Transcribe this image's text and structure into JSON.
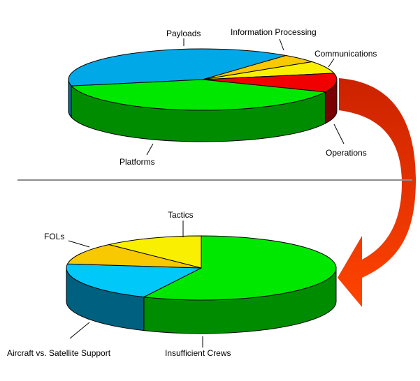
{
  "chart_data": [
    {
      "type": "pie",
      "style": "3d",
      "slices": [
        {
          "label": "Payloads",
          "value": 39,
          "color": "#00a8e8",
          "side_color": "#006f96"
        },
        {
          "label": "Information Processing",
          "value": 4.5,
          "color": "#f8c800",
          "side_color": "#a08000"
        },
        {
          "label": "Communications",
          "value": 6.5,
          "color": "#f8f000",
          "side_color": "#a09800"
        },
        {
          "label": "Operations",
          "value": 10,
          "color": "#f00000",
          "side_color": "#7a0000"
        },
        {
          "label": "Platforms",
          "value": 40,
          "color": "#00e800",
          "side_color": "#008c00"
        }
      ]
    },
    {
      "type": "pie",
      "style": "3d",
      "slices": [
        {
          "label": "Insufficient Crews",
          "value": 57,
          "color": "#00e800",
          "side_color": "#008c00"
        },
        {
          "label": "Aircraft vs. Satellite Support",
          "value": 20,
          "color": "#00c8f8",
          "side_color": "#006080"
        },
        {
          "label": "FOLs",
          "value": 11,
          "color": "#f8c800",
          "side_color": "#a08000"
        },
        {
          "label": "Tactics",
          "value": 12,
          "color": "#f8f000",
          "side_color": "#a09800"
        }
      ]
    }
  ],
  "divider_color": "#8c8c8c",
  "arrow_color": "#ff4400"
}
